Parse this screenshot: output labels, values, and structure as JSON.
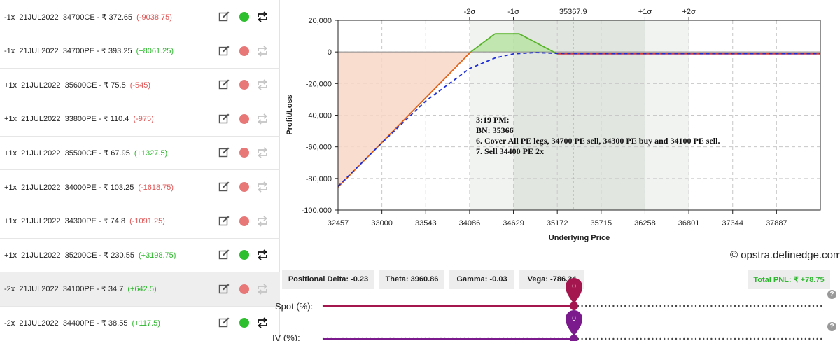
{
  "legs": [
    {
      "lots": "-1x",
      "expiry": "21JUL2022",
      "strike": "34700CE",
      "price": "₹ 372.65",
      "pnl": "(-9038.75)",
      "pnl_sign": "neg",
      "active": true
    },
    {
      "lots": "-1x",
      "expiry": "21JUL2022",
      "strike": "34700PE",
      "price": "₹ 393.25",
      "pnl": "(+8061.25)",
      "pnl_sign": "pos",
      "active": false
    },
    {
      "lots": "+1x",
      "expiry": "21JUL2022",
      "strike": "35600CE",
      "price": "₹ 75.5",
      "pnl": "(-545)",
      "pnl_sign": "neg",
      "active": false
    },
    {
      "lots": "+1x",
      "expiry": "21JUL2022",
      "strike": "33800PE",
      "price": "₹ 110.4",
      "pnl": "(-975)",
      "pnl_sign": "neg",
      "active": false
    },
    {
      "lots": "+1x",
      "expiry": "21JUL2022",
      "strike": "35500CE",
      "price": "₹ 67.95",
      "pnl": "(+1327.5)",
      "pnl_sign": "pos",
      "active": false
    },
    {
      "lots": "+1x",
      "expiry": "21JUL2022",
      "strike": "34000PE",
      "price": "₹ 103.25",
      "pnl": "(-1618.75)",
      "pnl_sign": "neg",
      "active": false
    },
    {
      "lots": "+1x",
      "expiry": "21JUL2022",
      "strike": "34300PE",
      "price": "₹ 74.8",
      "pnl": "(-1091.25)",
      "pnl_sign": "neg",
      "active": false
    },
    {
      "lots": "+1x",
      "expiry": "21JUL2022",
      "strike": "35200CE",
      "price": "₹ 230.55",
      "pnl": "(+3198.75)",
      "pnl_sign": "pos",
      "active": true
    },
    {
      "lots": "-2x",
      "expiry": "21JUL2022",
      "strike": "34100PE",
      "price": "₹ 34.7",
      "pnl": "(+642.5)",
      "pnl_sign": "pos",
      "active": false
    },
    {
      "lots": "-2x",
      "expiry": "21JUL2022",
      "strike": "34400PE",
      "price": "₹ 38.55",
      "pnl": "(+117.5)",
      "pnl_sign": "pos",
      "active": true
    }
  ],
  "colors": {
    "active_dot": "#2dbf2d",
    "inactive_dot": "#e87878",
    "expiry_line": "#e0611a",
    "t0_line": "#1f2fd6",
    "loss_fill": "#f8d7c6",
    "profit_fill": "#b9e3a4",
    "profit_line": "#58b32b"
  },
  "chart_data": {
    "type": "line",
    "xlabel": "Underlying Price",
    "ylabel": "Profit/Loss",
    "x_ticks": [
      "32457",
      "33000",
      "33543",
      "34086",
      "34629",
      "35172",
      "35715",
      "36258",
      "36801",
      "37344",
      "37887"
    ],
    "x_range": [
      32457,
      38430
    ],
    "y_ticks": [
      "20,000",
      "0",
      "-20,000",
      "-40,000",
      "-60,000",
      "-80,000",
      "-100,000"
    ],
    "y_range": [
      -100000,
      20000
    ],
    "sigma_labels": [
      "-2σ",
      "-1σ",
      "35367.9",
      "+1σ",
      "+2σ"
    ],
    "sigma_values": [
      34086,
      34629,
      35367.9,
      36258,
      36801
    ],
    "spot": 35367.9,
    "annotation": [
      "3:19 PM:",
      "BN: 35366",
      "6. Cover All PE legs, 34700 PE sell, 34300 PE buy and 34100 PE sell.",
      "7. Sell 34400 PE 2x"
    ],
    "series": [
      {
        "style": "expiry",
        "x": [
          32457,
          34100,
          34400,
          34700,
          35172,
          35500,
          38430
        ],
        "y": [
          -85500,
          0,
          11500,
          11500,
          -1200,
          -1200,
          -1200
        ]
      },
      {
        "style": "t0",
        "x": [
          32457,
          33000,
          33543,
          34086,
          34400,
          34629,
          34900,
          35172,
          35500,
          36000,
          38430
        ],
        "y": [
          -85000,
          -57500,
          -31000,
          -10500,
          -3800,
          -1200,
          -400,
          -900,
          -1100,
          -1100,
          -1100
        ]
      }
    ]
  },
  "stats": {
    "delta": "Positional Delta: -0.23",
    "theta": "Theta: 3960.86",
    "gamma": "Gamma: -0.03",
    "vega": "Vega: -786.34",
    "pnl": "Total PNL: ₹ +78.75"
  },
  "watermark": "© opstra.definedge.com",
  "sliders": {
    "spot_label": "Spot (%):",
    "spot_value": "0",
    "iv_label": "IV (%):",
    "iv_value": "0",
    "spot_color": "#a4164e",
    "iv_color": "#7a1a8c",
    "help": "?"
  }
}
